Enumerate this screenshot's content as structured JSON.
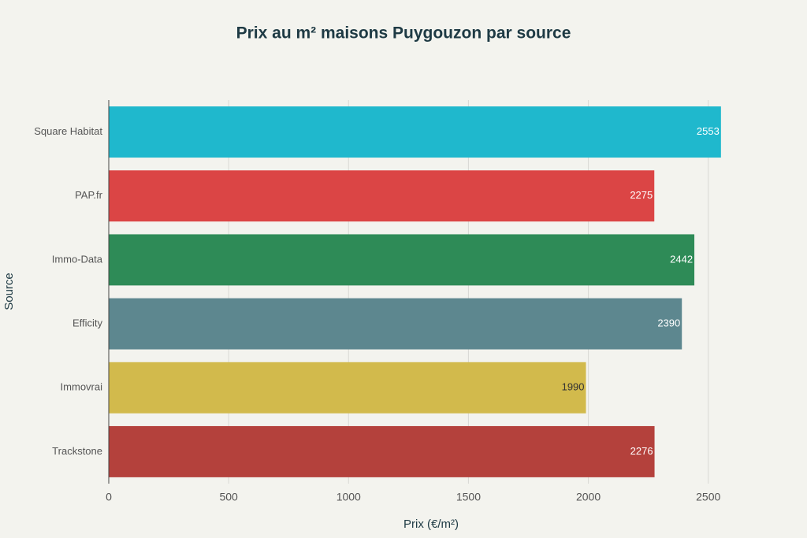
{
  "chart_data": {
    "type": "bar",
    "orientation": "horizontal",
    "title": "Prix au m² maisons Puygouzon par source",
    "x_label": "Prix (€/m²)",
    "y_label": "Source",
    "categories": [
      "Square Habitat",
      "PAP.fr",
      "Immo-Data",
      "Efficity",
      "Immovrai",
      "Trackstone"
    ],
    "values": [
      2553,
      2275,
      2442,
      2390,
      1990,
      2276
    ],
    "colors": [
      "#1FB8CD",
      "#DB4545",
      "#2E8B57",
      "#5D878F",
      "#D2BA4C",
      "#B4413C"
    ],
    "xlim": [
      0,
      2685
    ],
    "xticks": [
      0,
      500,
      1000,
      1500,
      2000,
      2500
    ],
    "grid": true
  }
}
